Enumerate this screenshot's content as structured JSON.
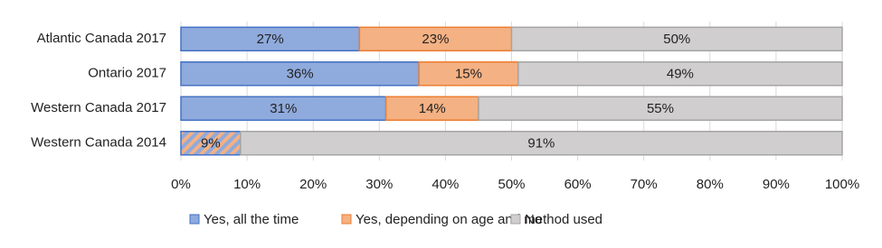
{
  "chart_data": {
    "type": "stacked-bar-horizontal",
    "categories": [
      "Atlantic Canada 2017",
      "Ontario 2017",
      "Western Canada 2017",
      "Western Canada 2014"
    ],
    "series": [
      {
        "name": "Yes, all the time",
        "color": "#8faadc",
        "edge": "#4472c4",
        "values": [
          27,
          36,
          31,
          null
        ],
        "value_labels": [
          "27%",
          "36%",
          "31%",
          null
        ]
      },
      {
        "name": "Yes, depending on age and method used",
        "color": "#f4b183",
        "edge": "#ed7d31",
        "values": [
          23,
          15,
          14,
          null
        ],
        "value_labels": [
          "23%",
          "15%",
          "14%",
          null
        ]
      },
      {
        "name": "No",
        "color": "#d0cece",
        "edge": "#a5a5a5",
        "values": [
          50,
          49,
          55,
          91
        ],
        "value_labels": [
          "50%",
          "49%",
          "55%",
          "91%"
        ]
      }
    ],
    "hatched": {
      "pattern_series": [
        0,
        1
      ],
      "values": [
        null,
        null,
        null,
        9
      ],
      "value_labels": [
        null,
        null,
        null,
        "9%"
      ]
    },
    "xlim": [
      0,
      100
    ],
    "xticks": [
      {
        "value": 0,
        "label": "0%"
      },
      {
        "value": 10,
        "label": "10%"
      },
      {
        "value": 20,
        "label": "20%"
      },
      {
        "value": 30,
        "label": "30%"
      },
      {
        "value": 40,
        "label": "40%"
      },
      {
        "value": 50,
        "label": "50%"
      },
      {
        "value": 60,
        "label": "60%"
      },
      {
        "value": 70,
        "label": "70%"
      },
      {
        "value": 80,
        "label": "80%"
      },
      {
        "value": 90,
        "label": "90%"
      },
      {
        "value": 100,
        "label": "100%"
      }
    ],
    "grid": true,
    "legend": "bottom"
  }
}
